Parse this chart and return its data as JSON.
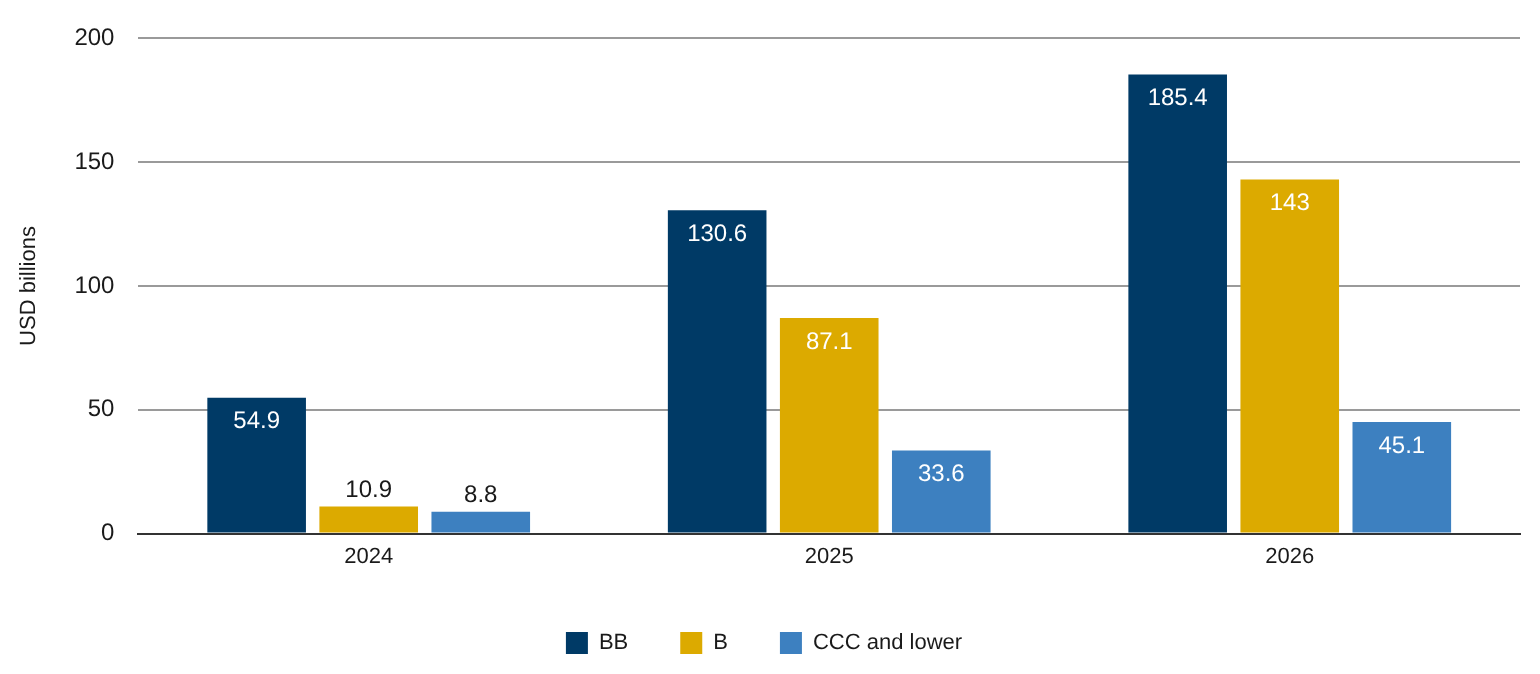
{
  "chart_data": {
    "type": "bar",
    "ylabel": "USD billions",
    "categories": [
      "2024",
      "2025",
      "2026"
    ],
    "series": [
      {
        "name": "BB",
        "color": "#003a66",
        "values": [
          54.9,
          130.6,
          185.4
        ]
      },
      {
        "name": "B",
        "color": "#dcaa00",
        "values": [
          10.9,
          87.1,
          143
        ]
      },
      {
        "name": "CCC and lower",
        "color": "#3d80c0",
        "values": [
          8.8,
          33.6,
          45.1
        ]
      }
    ],
    "ylim": [
      0,
      200
    ],
    "yticks": [
      0,
      50,
      100,
      150,
      200
    ],
    "grid": "y",
    "legend": "bottom",
    "data_labels": true
  }
}
